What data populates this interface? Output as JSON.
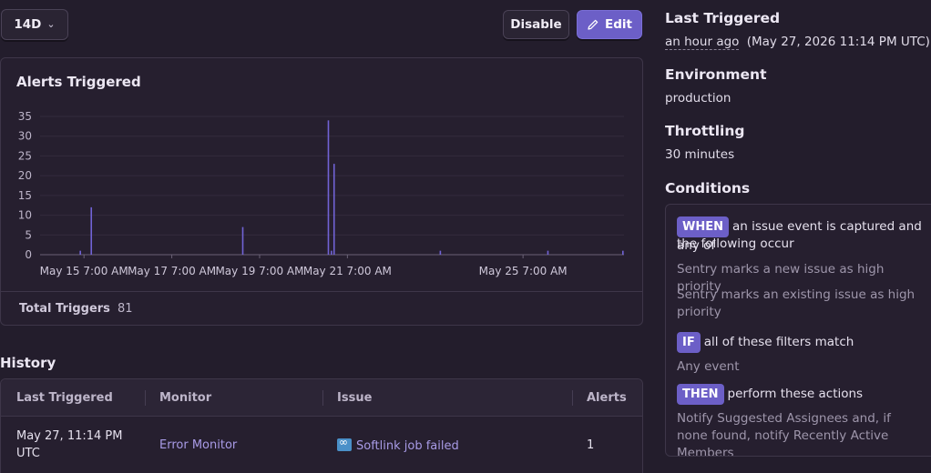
{
  "toolbar": {
    "range_label": "14D",
    "disable_label": "Disable",
    "edit_label": "Edit"
  },
  "chart_data": {
    "type": "bar",
    "title": "Alerts Triggered",
    "ylim": [
      0,
      35
    ],
    "y_ticks": [
      0,
      5,
      10,
      15,
      20,
      25,
      30,
      35
    ],
    "x_tick_labels": [
      "May 15 7:00 AM",
      "May 17 7:00 AM",
      "May 19 7:00 AM",
      "May 21 7:00 AM",
      "May 25 7:00 AM"
    ],
    "x_tick_days": [
      1,
      3,
      5,
      7,
      11
    ],
    "x_range_days": [
      0,
      13.3
    ],
    "series": [
      {
        "points": [
          {
            "day": 0.9,
            "value": 1
          },
          {
            "day": 1.15,
            "value": 12
          },
          {
            "day": 4.6,
            "value": 7
          },
          {
            "day": 6.55,
            "value": 34
          },
          {
            "day": 6.62,
            "value": 1
          },
          {
            "day": 6.68,
            "value": 23
          },
          {
            "day": 9.1,
            "value": 1
          },
          {
            "day": 11.55,
            "value": 1
          },
          {
            "day": 13.9,
            "value": 1
          }
        ]
      }
    ],
    "color": "#7163d6",
    "grid": true
  },
  "totals": {
    "label": "Total Triggers",
    "value": "81"
  },
  "history": {
    "title": "History",
    "columns": [
      "Last Triggered",
      "Monitor",
      "Issue",
      "Alerts"
    ],
    "rows": [
      {
        "last_triggered_line1": "May 27, 11:14 PM",
        "last_triggered_line2": "UTC",
        "monitor": "Error Monitor",
        "issue": "Softlink job failed",
        "alerts": "1"
      }
    ]
  },
  "sidebar": {
    "last_triggered_title": "Last Triggered",
    "last_triggered_relative": "an hour ago",
    "last_triggered_absolute": "(May 27, 2026 11:14 PM UTC)",
    "environment_title": "Environment",
    "environment_value": "production",
    "throttling_title": "Throttling",
    "throttling_value": "30 minutes",
    "conditions_title": "Conditions",
    "conditions": {
      "when_badge": "WHEN",
      "when_text": "an issue event is captured and any of",
      "when_text2": "the following occur",
      "when_items": [
        "Sentry marks a new issue as high priority",
        "Sentry marks an existing issue as high priority"
      ],
      "if_badge": "IF",
      "if_text": "all of these filters match",
      "if_items": [
        "Any event"
      ],
      "then_badge": "THEN",
      "then_text": "perform these actions",
      "then_items": [
        "Notify Suggested Assignees and, if none found, notify Recently Active Members"
      ]
    }
  }
}
